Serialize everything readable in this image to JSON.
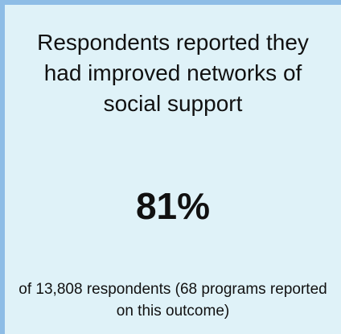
{
  "card": {
    "headline": "Respondents reported they had improved networks of social support",
    "stat": "81%",
    "footnote": "of 13,808 respondents (68 programs reported on this outcome)"
  },
  "colors": {
    "background": "#dff2f8",
    "accent_border": "#8ebde6",
    "text": "#111111"
  }
}
